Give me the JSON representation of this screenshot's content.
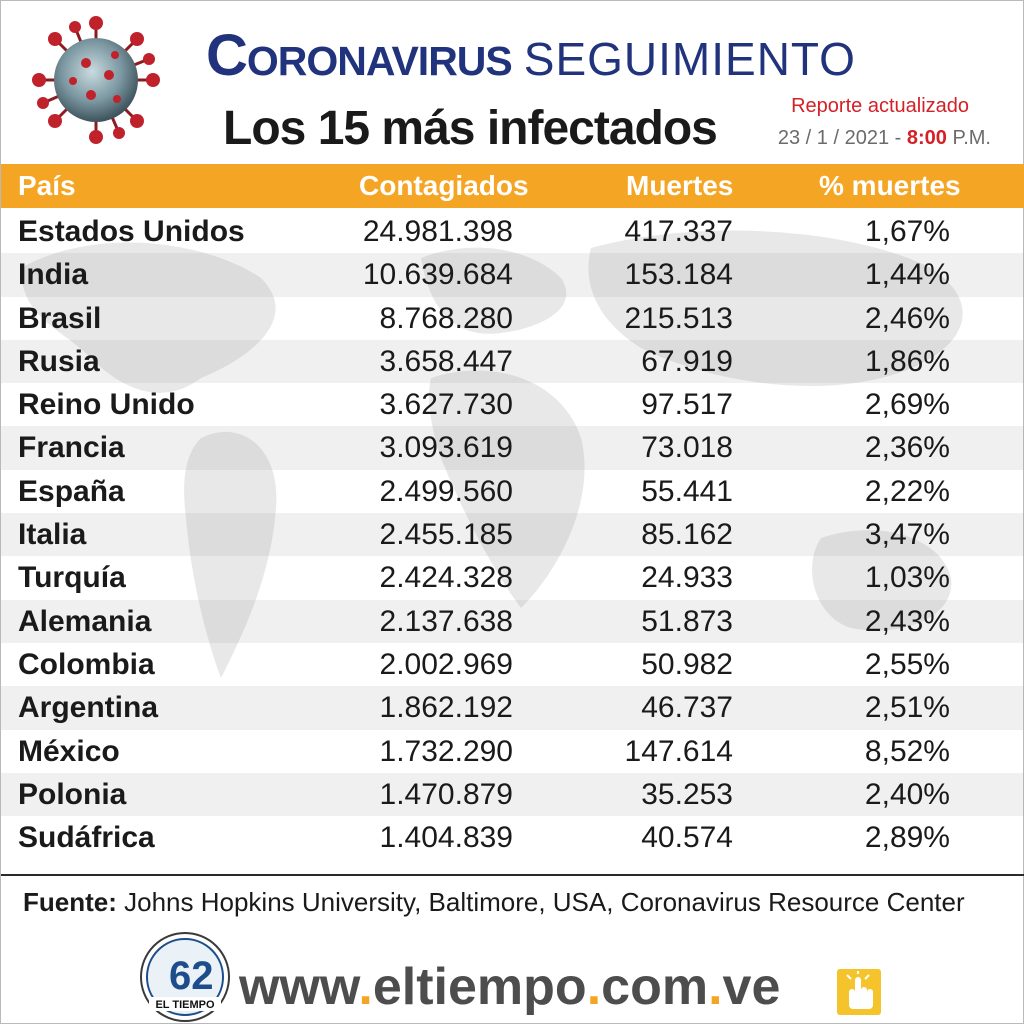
{
  "header": {
    "title_main": "Coronavirus",
    "title_sub": "SEGUIMIENTO",
    "subtitle_prefix": "Los",
    "subtitle_number": "15",
    "subtitle_suffix": "más infectados",
    "report_label": "Reporte actualizado",
    "report_date": "23 / 1 / 2021 -",
    "report_time": "8:00",
    "report_ampm": "P.M."
  },
  "table": {
    "columns": [
      "País",
      "Contagiados",
      "Muertes",
      "% muertes"
    ],
    "rows": [
      {
        "pais": "Estados Unidos",
        "contagiados": "24.981.398",
        "muertes": "417.337",
        "pct": "1,67%"
      },
      {
        "pais": "India",
        "contagiados": "10.639.684",
        "muertes": "153.184",
        "pct": "1,44%"
      },
      {
        "pais": "Brasil",
        "contagiados": "8.768.280",
        "muertes": "215.513",
        "pct": "2,46%"
      },
      {
        "pais": "Rusia",
        "contagiados": "3.658.447",
        "muertes": "67.919",
        "pct": "1,86%"
      },
      {
        "pais": "Reino Unido",
        "contagiados": "3.627.730",
        "muertes": "97.517",
        "pct": "2,69%"
      },
      {
        "pais": "Francia",
        "contagiados": "3.093.619",
        "muertes": "73.018",
        "pct": "2,36%"
      },
      {
        "pais": "España",
        "contagiados": "2.499.560",
        "muertes": "55.441",
        "pct": "2,22%"
      },
      {
        "pais": "Italia",
        "contagiados": "2.455.185",
        "muertes": "85.162",
        "pct": "3,47%"
      },
      {
        "pais": "Turquía",
        "contagiados": "2.424.328",
        "muertes": "24.933",
        "pct": "1,03%"
      },
      {
        "pais": "Alemania",
        "contagiados": "2.137.638",
        "muertes": "51.873",
        "pct": "2,43%"
      },
      {
        "pais": "Colombia",
        "contagiados": "2.002.969",
        "muertes": "50.982",
        "pct": "2,55%"
      },
      {
        "pais": "Argentina",
        "contagiados": "1.862.192",
        "muertes": "46.737",
        "pct": "2,51%"
      },
      {
        "pais": "México",
        "contagiados": "1.732.290",
        "muertes": "147.614",
        "pct": "8,52%"
      },
      {
        "pais": "Polonia",
        "contagiados": "1.470.879",
        "muertes": "35.253",
        "pct": "2,40%"
      },
      {
        "pais": "Sudáfrica",
        "contagiados": "1.404.839",
        "muertes": "40.574",
        "pct": "2,89%"
      }
    ]
  },
  "source": {
    "label": "Fuente:",
    "text": " Johns Hopkins University, Baltimore, USA, Coronavirus Resource Center"
  },
  "footer": {
    "logo_text": "EL TIEMPO",
    "logo_number": "62",
    "url_parts": [
      "www",
      ".",
      "eltiempo",
      ".",
      "com",
      ".",
      "ve"
    ]
  },
  "colors": {
    "accent": "#f5a524",
    "title_blue": "#22337d",
    "report_red": "#d42027"
  }
}
